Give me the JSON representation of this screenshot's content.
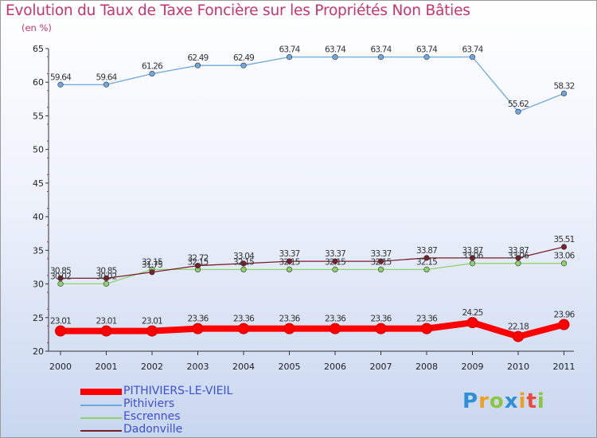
{
  "title": "Evolution du Taux de Taxe Foncière sur les Propriétés Non Bâties",
  "subtitle": "(en %)",
  "logo": "Proxiti",
  "chart_data": {
    "type": "line",
    "title": "Evolution du Taux de Taxe Foncière sur les Propriétés Non Bâties",
    "ylabel": "(en %)",
    "xlabel": "",
    "x": [
      "2000",
      "2001",
      "2002",
      "2003",
      "2004",
      "2005",
      "2006",
      "2007",
      "2008",
      "2009",
      "2010",
      "2011"
    ],
    "ylim": [
      20,
      65
    ],
    "yticks": [
      20,
      25,
      30,
      35,
      40,
      45,
      50,
      55,
      60,
      65
    ],
    "grid": false,
    "legend_position": "bottom-left",
    "series": [
      {
        "name": "PITHIVIERS-LE-VIEIL",
        "color": "#ff0000",
        "values": [
          23.01,
          23.01,
          23.01,
          23.36,
          23.36,
          23.36,
          23.36,
          23.36,
          23.36,
          24.25,
          22.18,
          23.96
        ],
        "labels": [
          "23.01",
          "23.01",
          "23.01",
          "23.36",
          "23.36",
          "23.36",
          "23.36",
          "23.36",
          "23.36",
          "24.25",
          "22.18",
          "23.96"
        ]
      },
      {
        "name": "Pithiviers",
        "color": "#6fa8dc",
        "values": [
          59.64,
          59.64,
          61.26,
          62.49,
          62.49,
          63.74,
          63.74,
          63.74,
          63.74,
          63.74,
          55.62,
          58.32
        ],
        "labels": [
          "59.64",
          "59.64",
          "61.26",
          "62.49",
          "62.49",
          "63.74",
          "63.74",
          "63.74",
          "63.74",
          "63.74",
          "55.62",
          "58.32"
        ]
      },
      {
        "name": "Escrennes",
        "color": "#8fd16a",
        "values": [
          30.02,
          30.02,
          32.15,
          32.15,
          32.15,
          32.15,
          32.15,
          32.15,
          32.15,
          33.06,
          33.06,
          33.06
        ],
        "labels": [
          "30.02",
          "30.02",
          "32.15",
          "32.15",
          "32.15",
          "32.15",
          "32.15",
          "32.15",
          "32.15",
          "33.06",
          "33.06",
          "33.06"
        ]
      },
      {
        "name": "Dadonville",
        "color": "#7a1f2b",
        "values": [
          30.85,
          30.85,
          31.75,
          32.72,
          33.04,
          33.37,
          33.37,
          33.37,
          33.87,
          33.87,
          33.87,
          35.51
        ],
        "labels": [
          "30.85",
          "30.85",
          "31.75",
          "32.72",
          "33.04",
          "33.37",
          "33.37",
          "33.37",
          "33.87",
          "33.87",
          "33.87",
          "35.51"
        ]
      }
    ]
  }
}
